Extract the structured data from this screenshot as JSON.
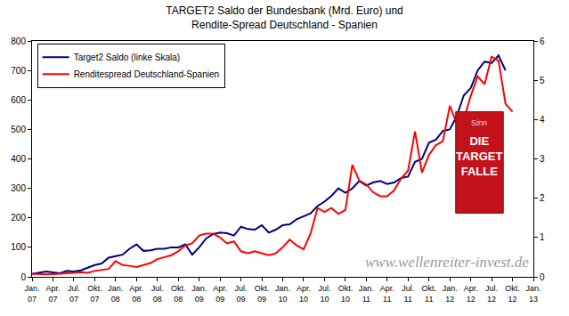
{
  "chart_data": {
    "type": "line",
    "title": [
      "TARGET2 Saldo der Bundesbank (Mrd. Euro) und",
      "Rendite-Spread Deutschland - Spanien"
    ],
    "categories": [
      "Jan. 07",
      null,
      null,
      "Apr. 07",
      null,
      null,
      "Jul. 07",
      null,
      null,
      "Okt. 07",
      null,
      null,
      "Jan. 08",
      null,
      null,
      "Apr. 08",
      null,
      null,
      "Jul. 08",
      null,
      null,
      "Okt. 08",
      null,
      null,
      "Jan. 09",
      null,
      null,
      "Apr. 09",
      null,
      null,
      "Jul. 09",
      null,
      null,
      "Okt. 09",
      null,
      null,
      "Jan. 10",
      null,
      null,
      "Apr. 10",
      null,
      null,
      "Jul. 10",
      null,
      null,
      "Okt. 10",
      null,
      null,
      "Jan. 11",
      null,
      null,
      "Apr. 11",
      null,
      null,
      "Jul. 11",
      null,
      null,
      "Okt. 11",
      null,
      null,
      "Jan. 12",
      null,
      null,
      "Apr. 12",
      null,
      null,
      "Jul. 12",
      null,
      null,
      "Okt. 12",
      null,
      null,
      "Jan. 13"
    ],
    "series": [
      {
        "name": "Target2 Saldo (linke Skala)",
        "color": "#000080",
        "line_style": "solid",
        "axis": "y",
        "values": [
          10,
          15,
          18,
          15,
          12,
          20,
          18,
          22,
          30,
          40,
          45,
          65,
          70,
          75,
          95,
          110,
          88,
          90,
          95,
          95,
          100,
          100,
          110,
          75,
          100,
          130,
          145,
          150,
          148,
          140,
          170,
          162,
          160,
          175,
          150,
          160,
          175,
          178,
          195,
          205,
          215,
          240,
          255,
          275,
          300,
          285,
          300,
          325,
          310,
          320,
          325,
          315,
          320,
          335,
          340,
          390,
          400,
          455,
          465,
          495,
          500,
          545,
          615,
          640,
          700,
          730,
          725,
          751,
          700,
          null,
          null,
          null,
          null
        ]
      },
      {
        "name": "Renditespread Deutschland-Spanien",
        "color": "#ff0000",
        "line_style": "solid",
        "axis": "y2",
        "values": [
          0.08,
          0.07,
          0.06,
          0.07,
          0.08,
          0.08,
          0.1,
          0.12,
          0.1,
          0.15,
          0.18,
          0.2,
          0.4,
          0.3,
          0.28,
          0.25,
          0.3,
          0.35,
          0.45,
          0.5,
          0.55,
          0.65,
          0.8,
          0.85,
          1.05,
          1.1,
          1.1,
          1.0,
          0.85,
          0.9,
          0.65,
          0.6,
          0.65,
          0.6,
          0.55,
          0.6,
          0.75,
          0.95,
          0.8,
          0.7,
          1.1,
          1.75,
          1.65,
          1.75,
          1.6,
          1.7,
          2.85,
          2.45,
          2.35,
          2.15,
          2.05,
          2.05,
          2.2,
          2.5,
          2.7,
          3.7,
          2.65,
          3.1,
          3.35,
          3.45,
          4.35,
          3.9,
          4.0,
          4.6,
          5.1,
          4.9,
          5.6,
          5.5,
          4.4,
          4.2,
          null,
          null,
          null
        ]
      }
    ],
    "ylim": [
      0,
      800
    ],
    "yticks": [
      0,
      100,
      200,
      300,
      400,
      500,
      600,
      700,
      800
    ],
    "y2lim": [
      0,
      6
    ],
    "y2ticks": [
      0,
      1,
      2,
      3,
      4,
      5,
      6
    ],
    "grid": false,
    "legend": "top-left",
    "annotations": [
      "www.wellenreiter-invest.de"
    ],
    "inset": {
      "author": "Sinn",
      "title": [
        "DIE",
        "TARGET",
        "FALLE"
      ]
    }
  }
}
